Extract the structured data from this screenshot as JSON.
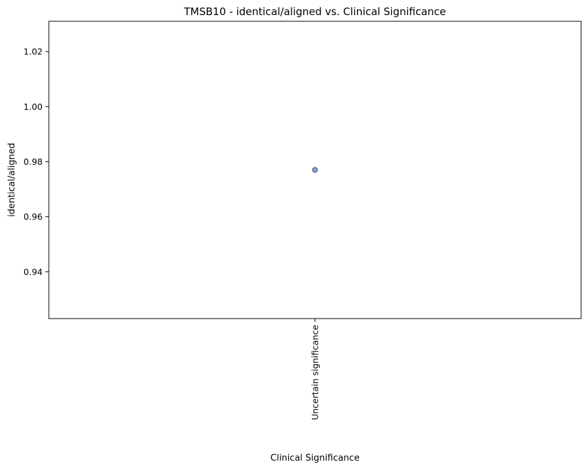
{
  "chart_data": {
    "type": "scatter",
    "title": "TMSB10 - identical/aligned vs. Clinical Significance",
    "xlabel": "Clinical Significance",
    "ylabel": "identical/aligned",
    "x_type": "categorical",
    "categories": [
      "Uncertain significance"
    ],
    "ylim": [
      0.923,
      1.031
    ],
    "yticks": [
      0.94,
      0.96,
      0.98,
      1.0,
      1.02
    ],
    "ytick_labels": [
      "0.94",
      "0.96",
      "0.98",
      "1.00",
      "1.02"
    ],
    "grid": false,
    "legend": false,
    "points": [
      {
        "x": "Uncertain significance",
        "y": 0.977
      }
    ],
    "colors": {
      "marker_fill": "#4c72b0",
      "marker_edge": "#34507e",
      "axes": "#000000"
    }
  }
}
